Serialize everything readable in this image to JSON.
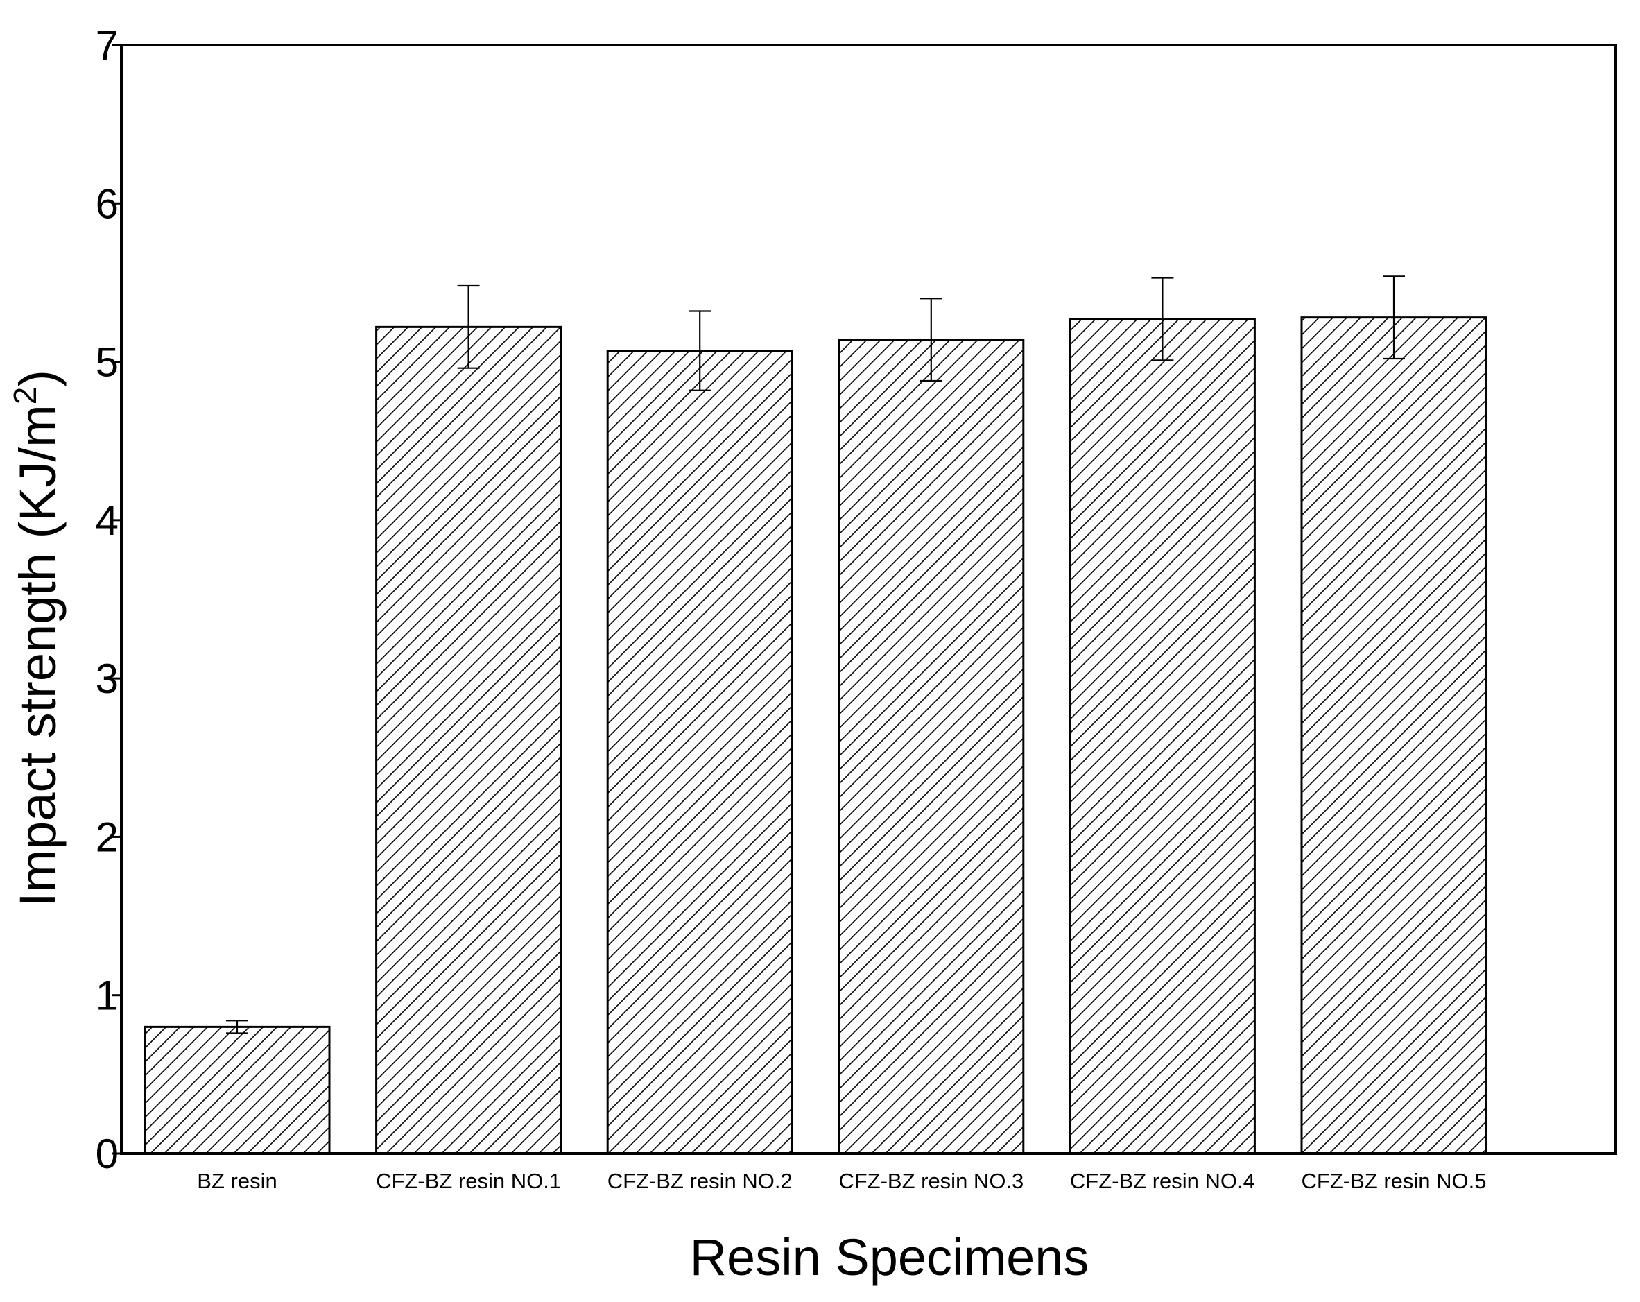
{
  "chart_data": {
    "type": "bar",
    "title": "",
    "xlabel": "Resin Specimens",
    "ylabel": "Impact strength (KJ/m",
    "ylabel_superscript": "2",
    "ylabel_close": ")",
    "categories": [
      "BZ resin",
      "CFZ-BZ resin NO.1",
      "CFZ-BZ resin NO.2",
      "CFZ-BZ resin NO.3",
      "CFZ-BZ resin NO.4",
      "CFZ-BZ resin NO.5"
    ],
    "values": [
      0.8,
      5.22,
      5.07,
      5.14,
      5.27,
      5.28
    ],
    "errors": [
      0.04,
      0.26,
      0.25,
      0.26,
      0.26,
      0.26
    ],
    "ylim": [
      0,
      7
    ],
    "yticks": [
      "0",
      "1",
      "2",
      "3",
      "4",
      "5",
      "6",
      "7"
    ],
    "grid": false,
    "bar_fill": "hatched",
    "colors": {
      "bar_edge": "#000000",
      "hatch": "#000000",
      "background": "#ffffff"
    }
  }
}
